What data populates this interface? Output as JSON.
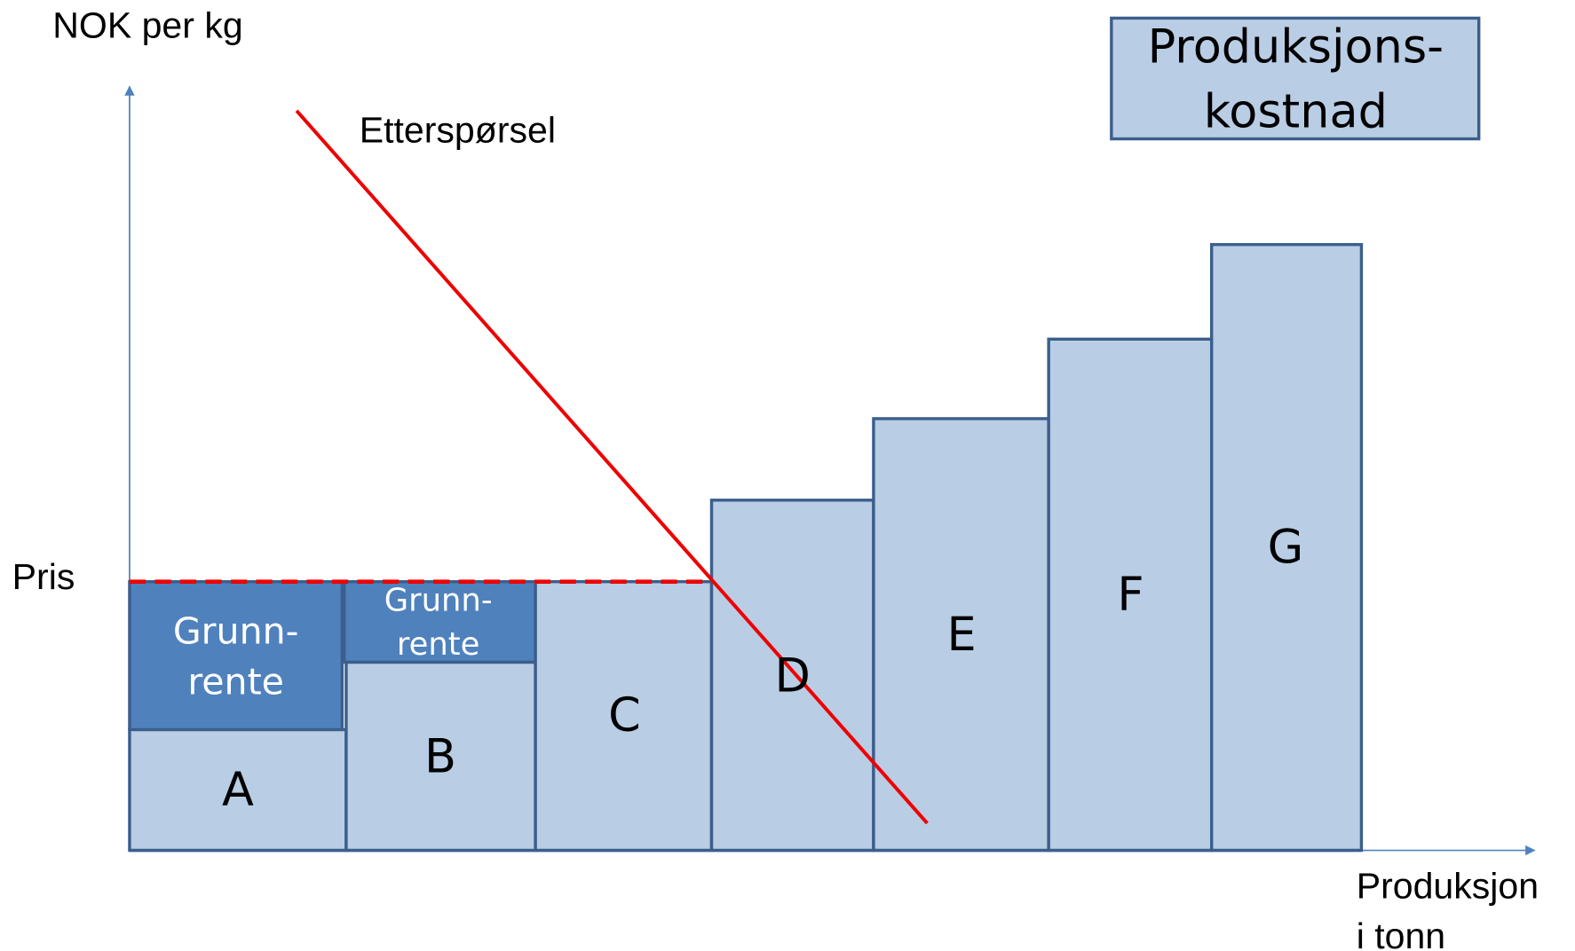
{
  "y_axis_label": "NOK per kg",
  "x_axis_label": [
    "Produksjon",
    "i tonn"
  ],
  "price_label": "Pris",
  "demand_label": "Etterspørsel",
  "legend": [
    "Produksjons-",
    "kostnad"
  ],
  "blocks": [
    "A",
    "B",
    "C",
    "D",
    "E",
    "F",
    "G"
  ],
  "ground_rent": [
    [
      "Grunn-",
      "rente"
    ],
    [
      "Grunn-",
      "rente"
    ]
  ]
}
